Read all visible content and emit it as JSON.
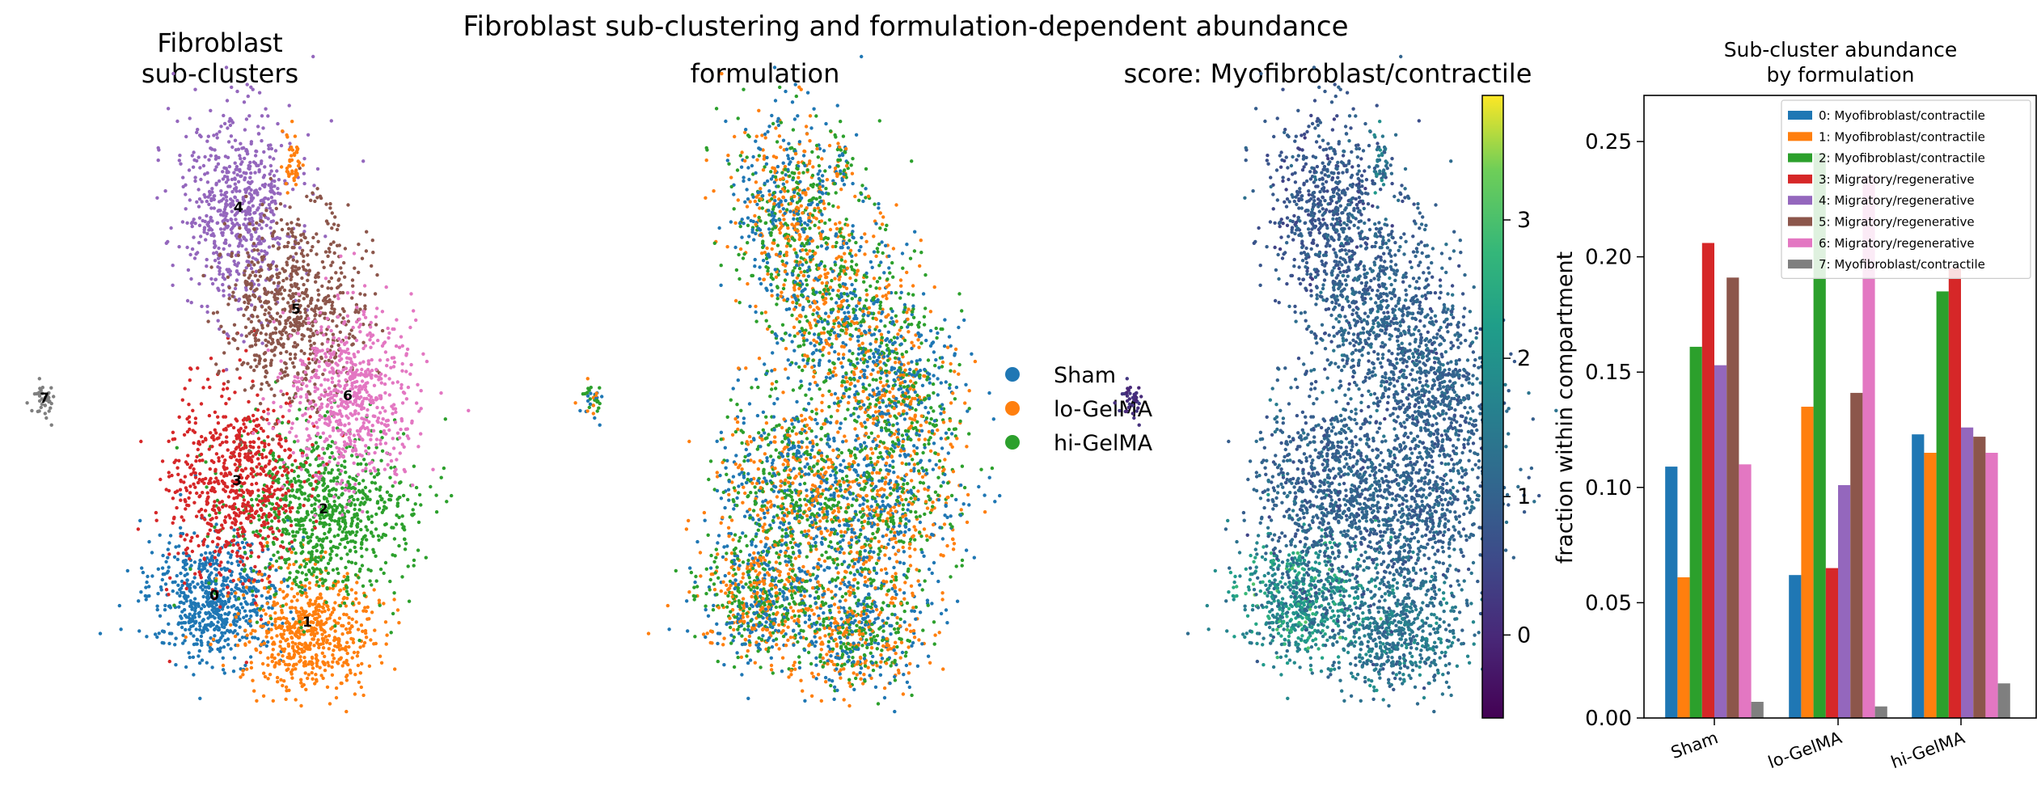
{
  "figure_title": "Fibroblast sub-clustering and formulation-dependent abundance",
  "panels": {
    "clusters": {
      "title_line1": "Fibroblast",
      "title_line2": "sub-clusters",
      "cluster_labels": [
        "0",
        "1",
        "2",
        "3",
        "4",
        "5",
        "6",
        "7"
      ]
    },
    "formulation": {
      "title": "formulation",
      "legend": [
        {
          "label": "Sham",
          "color": "#1f77b4"
        },
        {
          "label": "lo-GelMA",
          "color": "#ff7f0e"
        },
        {
          "label": "hi-GelMA",
          "color": "#2ca02c"
        }
      ]
    },
    "score": {
      "title": "score: Myofibroblast/contractile",
      "colorbar_ticks": [
        "0",
        "1",
        "2",
        "3"
      ],
      "colormap": "viridis"
    }
  },
  "colors": {
    "clusters": [
      "#1f77b4",
      "#ff7f0e",
      "#2ca02c",
      "#d62728",
      "#9467bd",
      "#8c564b",
      "#e377c2",
      "#7f7f7f"
    ]
  },
  "chart_data": [
    {
      "type": "scatter",
      "title": "Fibroblast sub-clusters",
      "description_of_marks": "UMAP embedding coloured by sub-cluster",
      "series": [
        {
          "name": "0"
        },
        {
          "name": "1"
        },
        {
          "name": "2"
        },
        {
          "name": "3"
        },
        {
          "name": "4"
        },
        {
          "name": "5"
        },
        {
          "name": "6"
        },
        {
          "name": "7"
        }
      ]
    },
    {
      "type": "scatter",
      "title": "formulation",
      "series": [
        {
          "name": "Sham"
        },
        {
          "name": "lo-GelMA"
        },
        {
          "name": "hi-GelMA"
        }
      ]
    },
    {
      "type": "scatter",
      "title": "score: Myofibroblast/contractile",
      "colorbar_range": [
        -0.6,
        3.9
      ]
    },
    {
      "type": "bar",
      "title": "Sub-cluster abundance\nby formulation",
      "title_lines": [
        "Sub-cluster abundance",
        "by formulation"
      ],
      "ylabel": "fraction within compartment",
      "xlabel": "",
      "categories": [
        "Sham",
        "lo-GelMA",
        "hi-GelMA"
      ],
      "ylim": [
        0,
        0.27
      ],
      "yticks": [
        "0.00",
        "0.05",
        "0.10",
        "0.15",
        "0.20",
        "0.25"
      ],
      "ytick_values": [
        0,
        0.05,
        0.1,
        0.15,
        0.2,
        0.25
      ],
      "legend_placement": "top-right",
      "grid": false,
      "series": [
        {
          "name": "0: Myofibroblast/contractile",
          "color": "#1f77b4",
          "values": [
            0.109,
            0.062,
            0.123
          ]
        },
        {
          "name": "1: Myofibroblast/contractile",
          "color": "#ff7f0e",
          "values": [
            0.061,
            0.135,
            0.115
          ]
        },
        {
          "name": "2: Myofibroblast/contractile",
          "color": "#2ca02c",
          "values": [
            0.161,
            0.245,
            0.185
          ]
        },
        {
          "name": "3: Migratory/regenerative",
          "color": "#d62728",
          "values": [
            0.206,
            0.065,
            0.195
          ]
        },
        {
          "name": "4: Migratory/regenerative",
          "color": "#9467bd",
          "values": [
            0.153,
            0.101,
            0.126
          ]
        },
        {
          "name": "5: Migratory/regenerative",
          "color": "#8c564b",
          "values": [
            0.191,
            0.141,
            0.122
          ]
        },
        {
          "name": "6: Migratory/regenerative",
          "color": "#e377c2",
          "values": [
            0.11,
            0.235,
            0.115
          ]
        },
        {
          "name": "7: Myofibroblast/contractile",
          "color": "#7f7f7f",
          "values": [
            0.007,
            0.005,
            0.015
          ]
        }
      ]
    }
  ]
}
